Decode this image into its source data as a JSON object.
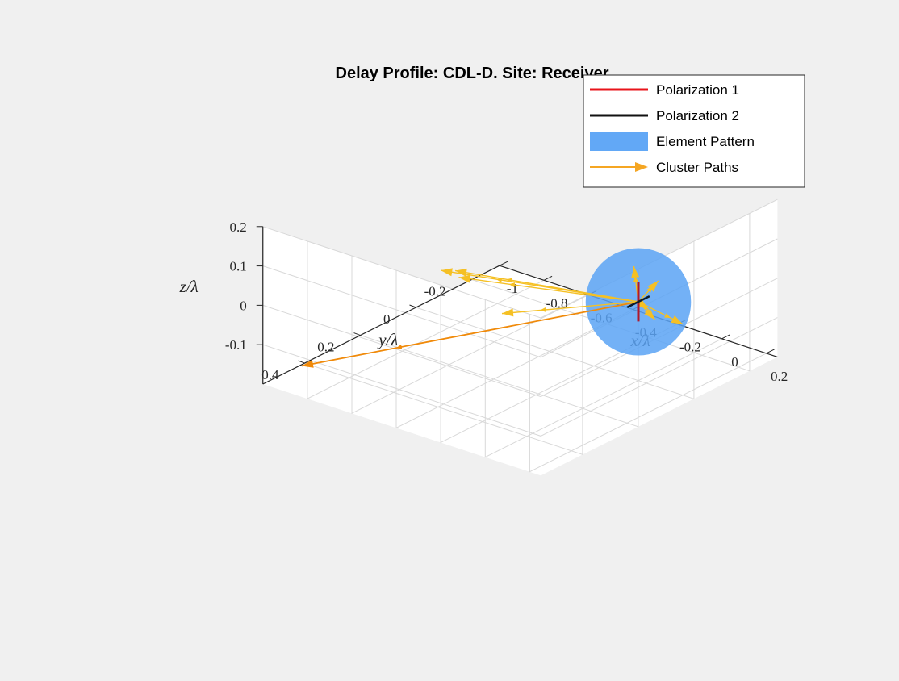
{
  "chart_data": {
    "type": "3d-line",
    "title": "Delay Profile: CDL-D. Site: Receiver",
    "xlabel": "x/λ",
    "ylabel": "y/λ",
    "zlabel": "z/λ",
    "xlim": [
      -1.0,
      0.25
    ],
    "ylim": [
      -0.3,
      0.55
    ],
    "zlim": [
      -0.2,
      0.2
    ],
    "x_ticks": [
      "-1",
      "-0.8",
      "-0.6",
      "-0.4",
      "-0.2",
      "0",
      "0.2"
    ],
    "y_ticks": [
      "-0.2",
      "0",
      "0.2",
      "0.4"
    ],
    "z_ticks": [
      "-0.1",
      "0",
      "0.1",
      "0.2"
    ],
    "grid": true,
    "legend_position": "top-right",
    "legend": [
      {
        "label": "Polarization 1",
        "color": "#e8141b",
        "kind": "line"
      },
      {
        "label": "Polarization 2",
        "color": "#111111",
        "kind": "line"
      },
      {
        "label": "Element Pattern",
        "color": "#5aa3f5",
        "kind": "patch"
      },
      {
        "label": "Cluster Paths",
        "color": "#f5a623",
        "kind": "arrow"
      }
    ],
    "colors": {
      "polarization_1": "#b0182b",
      "polarization_2": "#0d1b2a",
      "element_pattern": "#5aa3f5",
      "cluster_paths": "#f5c024",
      "dominant_path": "#f08a0a",
      "grid": "#d8d8d8",
      "axes": "#262626",
      "background": "#ffffff",
      "figure": "#f0f0f0"
    },
    "origin": [
      0,
      0,
      0
    ],
    "element_pattern_radius": 0.075,
    "polarization_1_segment": [
      [
        0,
        0,
        -0.05
      ],
      [
        0,
        0,
        0.05
      ]
    ],
    "polarization_2_segment": [
      [
        0,
        -0.04,
        0.0
      ],
      [
        0,
        0.04,
        0.0
      ]
    ],
    "cluster_paths": [
      {
        "to": [
          -0.95,
          0.45,
          -0.18
        ],
        "dominant": true
      },
      {
        "to": [
          -0.62,
          0.15,
          0.0
        ],
        "dominant": false
      },
      {
        "to": [
          -0.45,
          0.35,
          0.12
        ],
        "dominant": false
      },
      {
        "to": [
          -0.26,
          0.45,
          0.19
        ],
        "dominant": false
      },
      {
        "to": [
          -0.05,
          0.45,
          0.12
        ],
        "dominant": false
      },
      {
        "to": [
          0.09,
          0.0,
          0.07
        ],
        "dominant": false
      },
      {
        "to": [
          0.1,
          0.02,
          -0.02
        ],
        "dominant": false
      },
      {
        "to": [
          -0.08,
          -0.1,
          -0.07
        ],
        "dominant": false
      },
      {
        "to": [
          0.05,
          -0.12,
          -0.09
        ],
        "dominant": false
      },
      {
        "to": [
          0.03,
          0.04,
          0.11
        ],
        "dominant": false
      }
    ]
  }
}
